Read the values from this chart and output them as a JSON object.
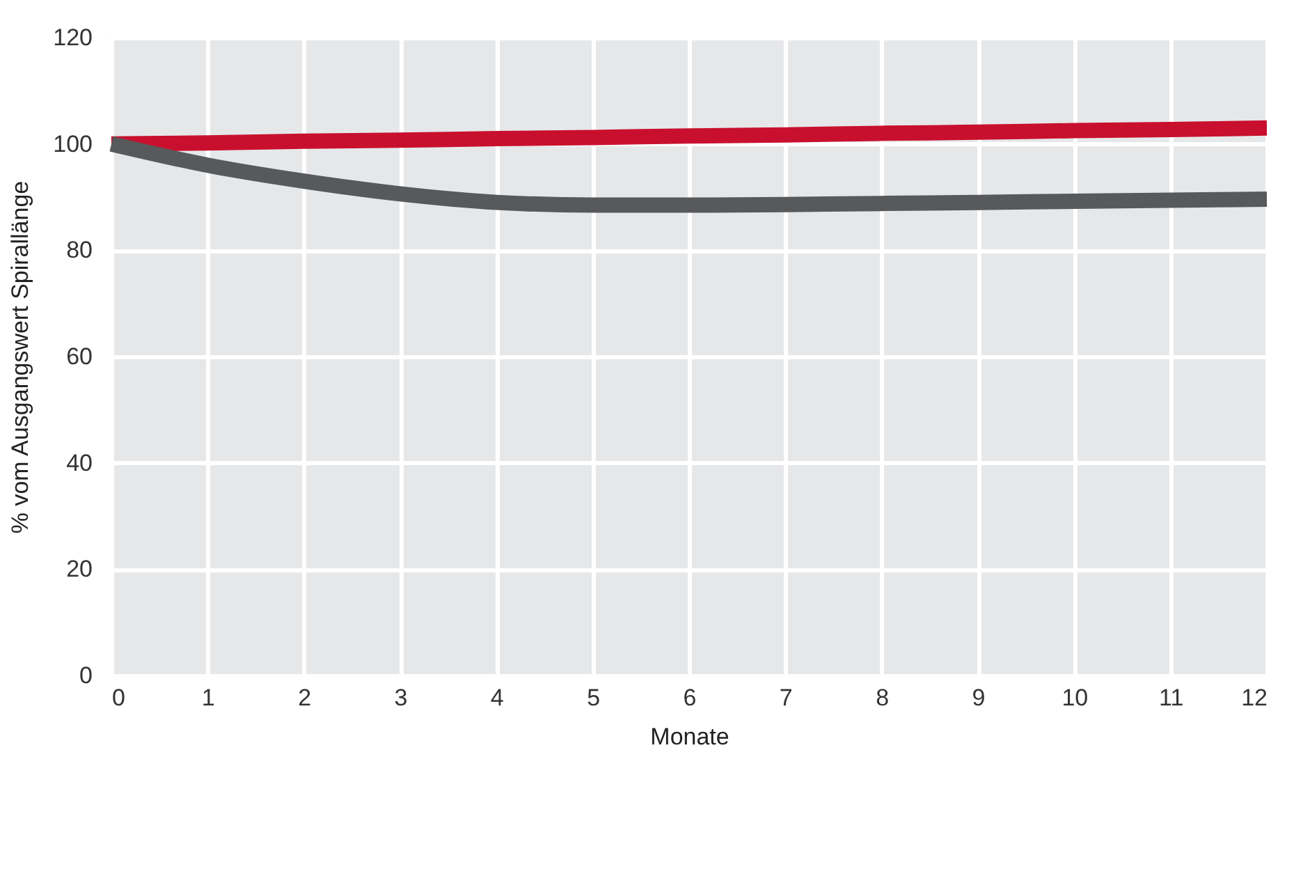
{
  "chart_data": {
    "type": "line",
    "xlabel": "Monate",
    "ylabel": "% vom Ausgangswert Spirallänge",
    "x": [
      0,
      1,
      2,
      3,
      4,
      5,
      6,
      7,
      8,
      9,
      10,
      11,
      12
    ],
    "series": [
      {
        "color": "#c8102e",
        "values": [
          100,
          100.2,
          100.5,
          100.7,
          101,
          101.2,
          101.5,
          101.7,
          102,
          102.2,
          102.5,
          102.7,
          103
        ]
      },
      {
        "color": "#58595b",
        "values": [
          100,
          96,
          93,
          90.6,
          89,
          88.5,
          88.5,
          88.6,
          88.8,
          89,
          89.2,
          89.4,
          89.6
        ]
      }
    ],
    "xlim": [
      0,
      12
    ],
    "xticks": [
      0,
      1,
      2,
      3,
      4,
      5,
      6,
      7,
      8,
      9,
      10,
      11,
      12
    ],
    "ylim": [
      0,
      120
    ],
    "yticks": [
      0,
      20,
      40,
      60,
      80,
      100,
      120
    ],
    "grid": true,
    "marker": "none",
    "line_style": "solid",
    "legend": false
  }
}
